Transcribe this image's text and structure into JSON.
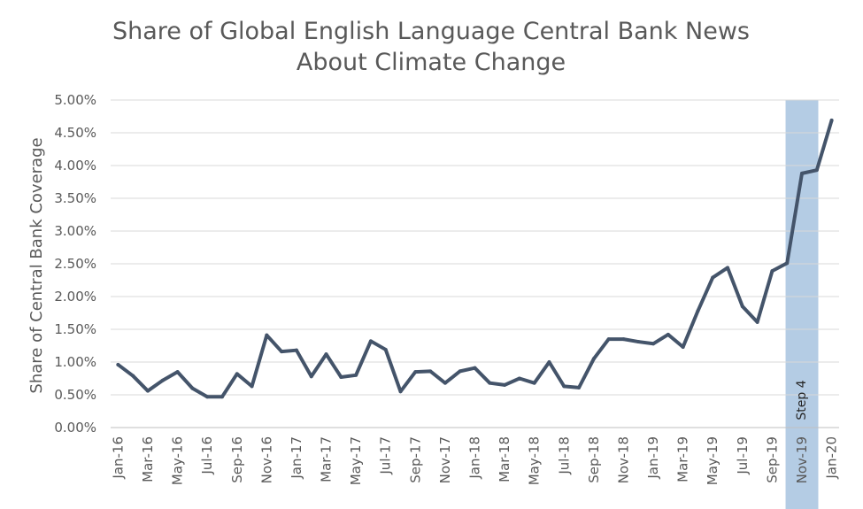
{
  "chart_data": {
    "type": "line",
    "title_lines": [
      "Share of Global English Language Central Bank News",
      "About Climate Change"
    ],
    "xlabel": "",
    "ylabel": "Share of Central Bank Coverage",
    "ylim": [
      0,
      5
    ],
    "y_ticks": [
      "0.00%",
      "0.50%",
      "1.00%",
      "1.50%",
      "2.00%",
      "2.50%",
      "3.00%",
      "3.50%",
      "4.00%",
      "4.50%",
      "5.00%"
    ],
    "grid": true,
    "x": [
      "Jan-16",
      "Feb-16",
      "Mar-16",
      "Apr-16",
      "May-16",
      "Jun-16",
      "Jul-16",
      "Aug-16",
      "Sep-16",
      "Oct-16",
      "Nov-16",
      "Dec-16",
      "Jan-17",
      "Feb-17",
      "Mar-17",
      "Apr-17",
      "May-17",
      "Jun-17",
      "Jul-17",
      "Aug-17",
      "Sep-17",
      "Oct-17",
      "Nov-17",
      "Dec-17",
      "Jan-18",
      "Feb-18",
      "Mar-18",
      "Apr-18",
      "May-18",
      "Jun-18",
      "Jul-18",
      "Aug-18",
      "Sep-18",
      "Oct-18",
      "Nov-18",
      "Dec-18",
      "Jan-19",
      "Feb-19",
      "Mar-19",
      "Apr-19",
      "May-19",
      "Jun-19",
      "Jul-19",
      "Aug-19",
      "Sep-19",
      "Oct-19",
      "Nov-19",
      "Dec-19",
      "Jan-20"
    ],
    "x_tick_labels": [
      "Jan-16",
      "Mar-16",
      "May-16",
      "Jul-16",
      "Sep-16",
      "Nov-16",
      "Jan-17",
      "Mar-17",
      "May-17",
      "Jul-17",
      "Sep-17",
      "Nov-17",
      "Jan-18",
      "Mar-18",
      "May-18",
      "Jul-18",
      "Sep-18",
      "Nov-18",
      "Jan-19",
      "Mar-19",
      "May-19",
      "Jul-19",
      "Sep-19",
      "Nov-19",
      "Jan-20"
    ],
    "series": [
      {
        "color": "#44546a",
        "values": [
          0.96,
          0.79,
          0.56,
          0.72,
          0.85,
          0.6,
          0.47,
          0.47,
          0.82,
          0.63,
          1.41,
          1.16,
          1.18,
          0.78,
          1.12,
          0.77,
          0.8,
          1.32,
          1.19,
          0.55,
          0.85,
          0.86,
          0.68,
          0.86,
          0.91,
          0.68,
          0.65,
          0.75,
          0.68,
          1.0,
          0.63,
          0.61,
          1.05,
          1.35,
          1.35,
          1.31,
          1.28,
          1.42,
          1.23,
          1.78,
          2.29,
          2.44,
          1.85,
          1.61,
          2.39,
          2.51,
          3.88,
          3.93,
          4.69
        ]
      }
    ],
    "highlight": {
      "label": "Step 4",
      "start": "Oct-19",
      "end": "Dec-19",
      "color": "#b4cce4"
    }
  }
}
